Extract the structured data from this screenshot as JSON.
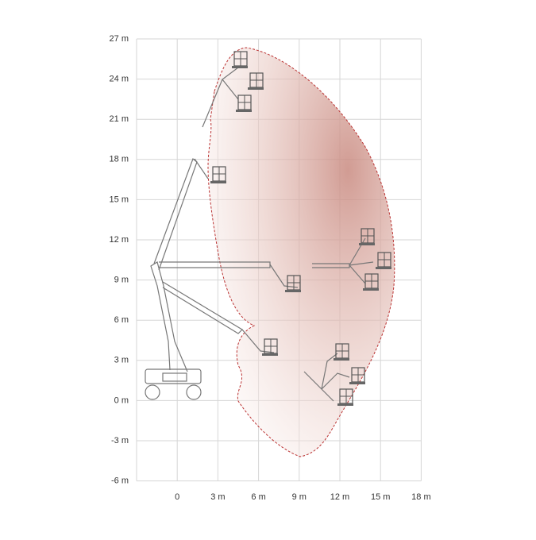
{
  "y_axis_labels": [
    "27 m",
    "24 m",
    "21 m",
    "18 m",
    "15 m",
    "12 m",
    "9 m",
    "6 m",
    "3 m",
    "0 m",
    "-3 m",
    "-6 m"
  ],
  "x_axis_labels": [
    "0",
    "3 m",
    "6 m",
    "9 m",
    "12 m",
    "15 m",
    "18 m"
  ]
}
